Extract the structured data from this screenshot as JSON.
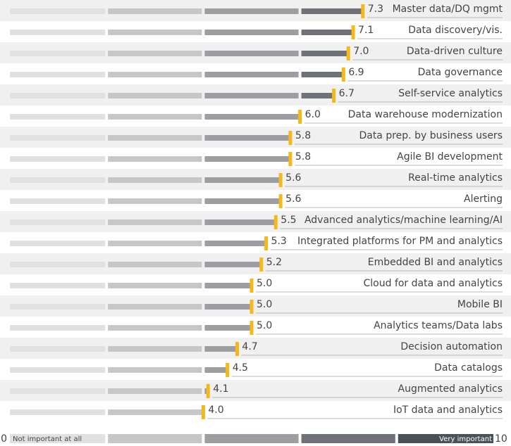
{
  "chart_data": {
    "type": "bar",
    "categories": [
      "Master data/DQ mgmt",
      "Data discovery/vis.",
      "Data-driven culture",
      "Data governance",
      "Self-service analytics",
      "Data warehouse modernization",
      "Data prep. by business users",
      "Agile BI development",
      "Real-time analytics",
      "Alerting",
      "Advanced analytics/machine learning/AI",
      "Integrated platforms for PM and analytics",
      "Embedded BI and analytics",
      "Cloud for data and analytics",
      "Mobile BI",
      "Analytics teams/Data labs",
      "Decision automation",
      "Data catalogs",
      "Augmented analytics",
      "IoT data and analytics"
    ],
    "values": [
      7.3,
      7.1,
      7.0,
      6.9,
      6.7,
      6.0,
      5.8,
      5.8,
      5.6,
      5.6,
      5.5,
      5.3,
      5.2,
      5.0,
      5.0,
      5.0,
      4.7,
      4.5,
      4.1,
      4.0
    ],
    "value_labels": [
      "7.3",
      "7.1",
      "7.0",
      "6.9",
      "6.7",
      "6.0",
      "5.8",
      "5.8",
      "5.6",
      "5.6",
      "5.5",
      "5.3",
      "5.2",
      "5.0",
      "5.0",
      "5.0",
      "4.7",
      "4.5",
      "4.1",
      "4.0"
    ],
    "xlim": [
      0,
      10
    ],
    "xticks": [
      0,
      10
    ],
    "scale_low_label": "Not important at all",
    "scale_high_label": "Very important",
    "zone_colors": [
      "#e0e1e2",
      "#c6c7c9",
      "#9c9ea1",
      "#6f7377",
      "#4b5158"
    ],
    "marker_color": "#f4b81c"
  }
}
